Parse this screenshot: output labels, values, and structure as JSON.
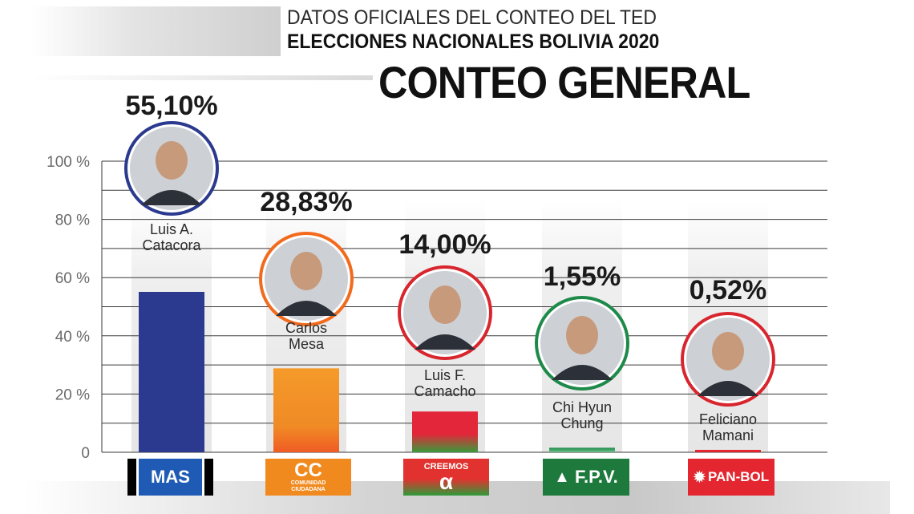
{
  "header": {
    "line1": "DATOS OFICIALES DEL CONTEO DEL TED",
    "line2": "ELECCIONES NACIONALES BOLIVIA 2020",
    "title": "CONTEO GENERAL"
  },
  "chart_data": {
    "type": "bar",
    "categories": [
      "Luis A. Catacora",
      "Carlos Mesa",
      "Luis F. Camacho",
      "Chi Hyun Chung",
      "Feliciano Mamani"
    ],
    "parties": [
      "MAS",
      "CC",
      "CREEMOS",
      "F.P.V.",
      "PAN-BOL"
    ],
    "values": [
      55.1,
      28.83,
      14.0,
      1.55,
      0.52
    ],
    "value_labels": [
      "55,10%",
      "28,83%",
      "14,00%",
      "1,55%",
      "0,52%"
    ],
    "name_lines": [
      [
        "Luis A.",
        "Catacora"
      ],
      [
        "Carlos",
        "Mesa"
      ],
      [
        "Luis F.",
        "Camacho"
      ],
      [
        "Chi Hyun",
        "Chung"
      ],
      [
        "Feliciano",
        "Mamani"
      ]
    ],
    "ylim": [
      0,
      100
    ],
    "yticks": [
      0,
      20,
      40,
      60,
      80,
      100
    ],
    "ytick_labels": [
      "0",
      "20 %",
      "40 %",
      "60 %",
      "80 %",
      "100 %"
    ],
    "grid": true,
    "colors": [
      "#2b3a8f",
      "#f08a25",
      "#e3263a",
      "#1e8a4a",
      "#e32630"
    ],
    "ring_colors": [
      "#2b3a8f",
      "#f26b1d",
      "#d8262e",
      "#1e8a4a",
      "#d8262e"
    ]
  },
  "logos": {
    "mas": "MAS",
    "cc_big": "CC",
    "cc_small_1": "COMUNIDAD",
    "cc_small_2": "CIUDADANA",
    "creemos_text": "CREEMOS",
    "fpv": "F.P.V.",
    "panbol": "PAN-BOL"
  }
}
